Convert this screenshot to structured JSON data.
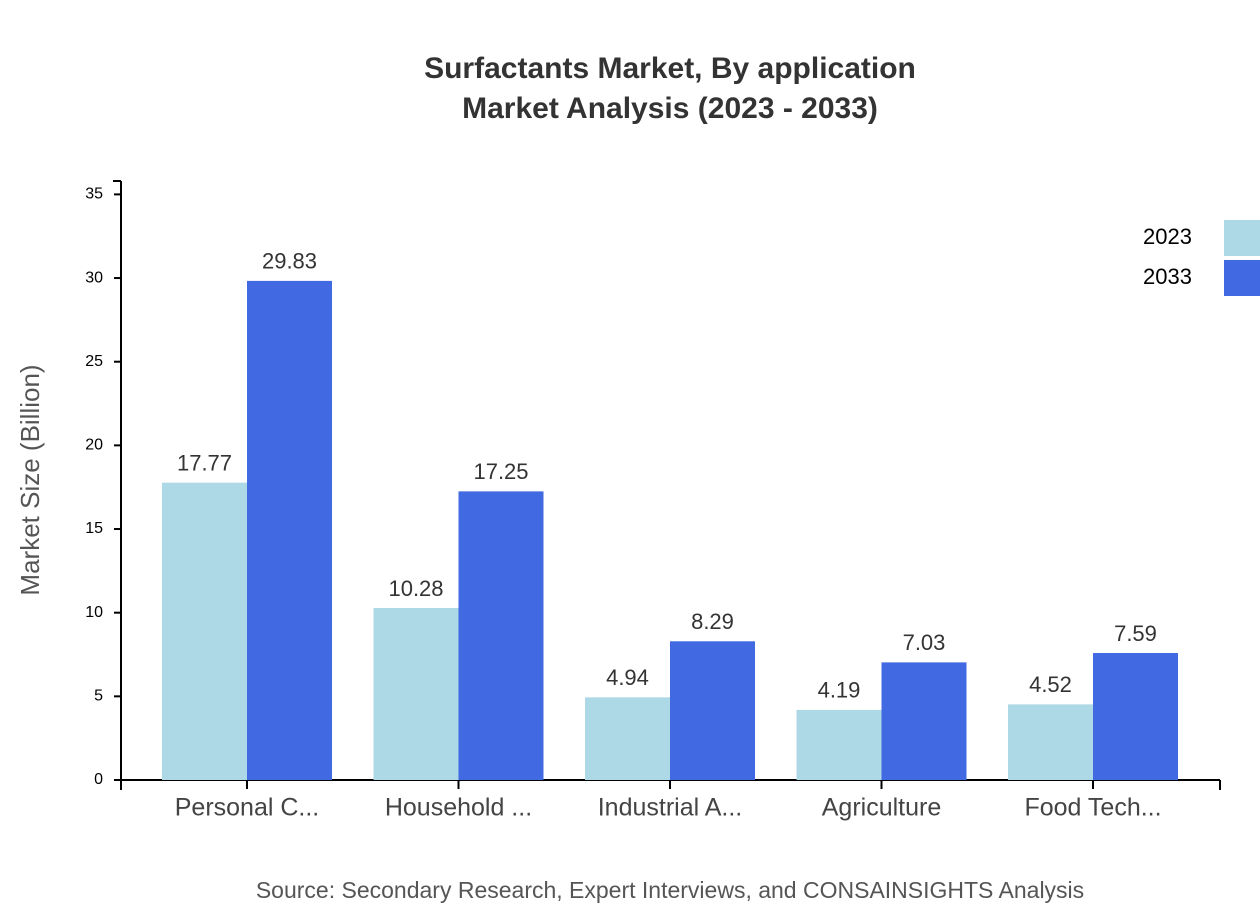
{
  "chart_data": {
    "type": "bar",
    "title": "Surfactants Market, By application",
    "subtitle": "Market Analysis (2023 - 2033)",
    "y_label": "Market Size (Billion)",
    "source": "Source: Secondary Research, Expert Interviews, and CONSAINSIGHTS Analysis",
    "categories": [
      "Personal C...",
      "Household ...",
      "Industrial A...",
      "Agriculture",
      "Food Tech..."
    ],
    "series": [
      {
        "name": "2023",
        "color": "#add8e6",
        "values": [
          17.77,
          10.28,
          4.94,
          4.19,
          4.52
        ]
      },
      {
        "name": "2033",
        "color": "#4169e1",
        "values": [
          29.83,
          17.25,
          8.29,
          7.03,
          7.59
        ]
      }
    ],
    "ylim": [
      0,
      35.8
    ],
    "yticks": [
      0,
      5,
      10,
      15,
      20,
      25,
      30,
      35
    ],
    "grid": false,
    "legend": "top-right"
  }
}
